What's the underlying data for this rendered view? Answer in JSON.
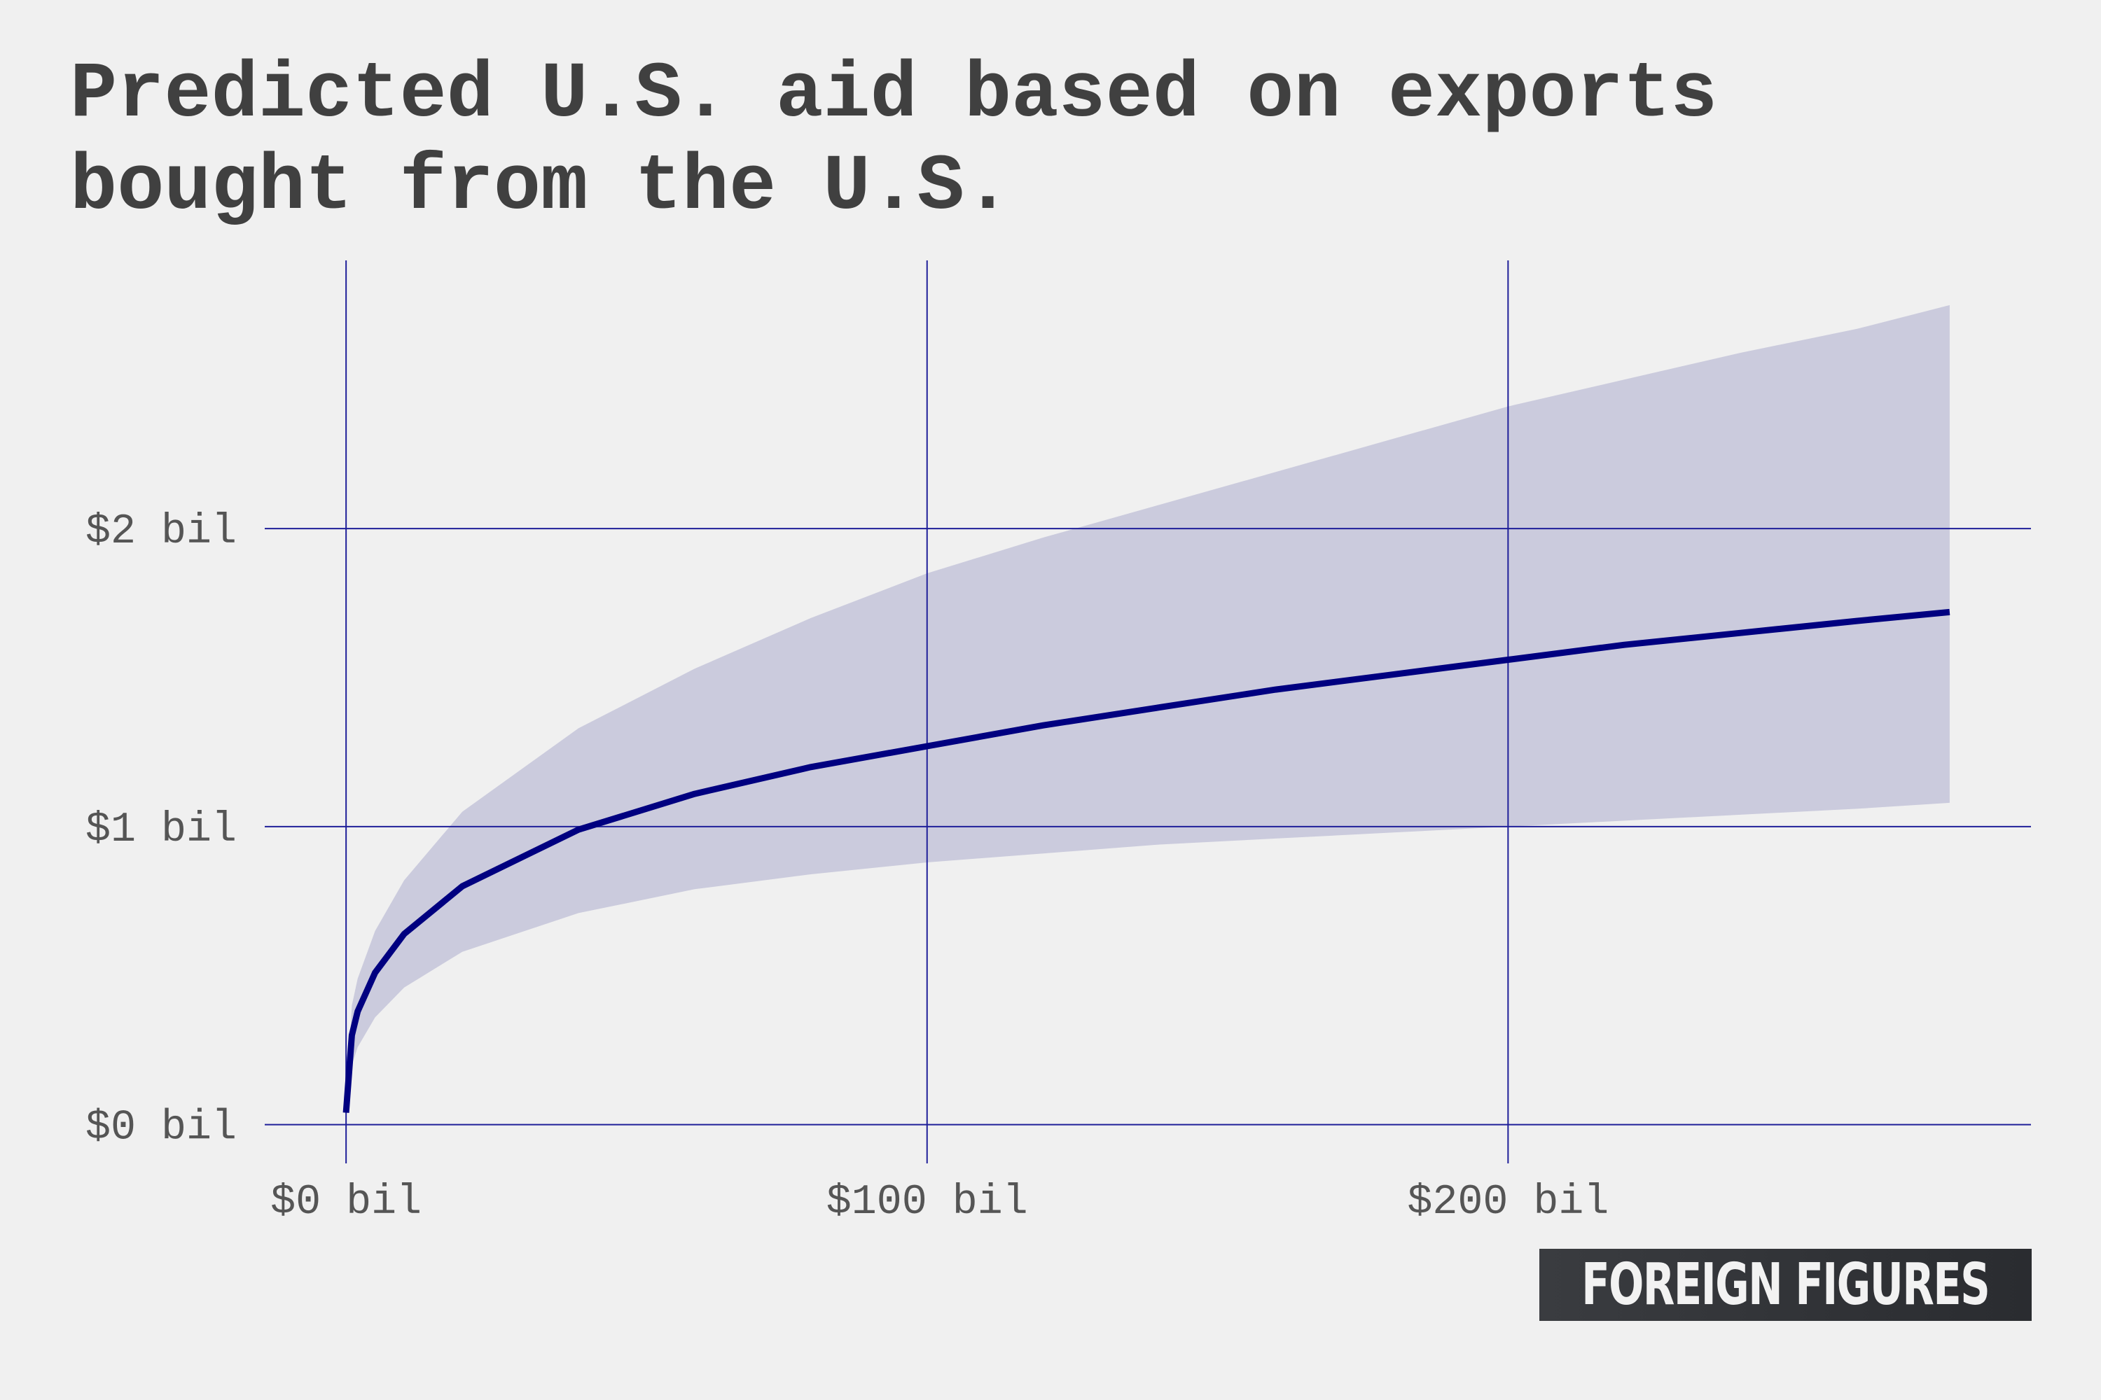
{
  "title_lines": [
    "Predicted U.S. aid based on exports",
    "bought from the U.S."
  ],
  "brand": "FOREIGN FIGURES",
  "colors": {
    "background": "#f0f0f0",
    "line": "#000080",
    "band": "#cbcbdd",
    "grid": "#1f1f99",
    "title": "#404040",
    "ticks": "#555555",
    "brand_bg": "#303236"
  },
  "chart_data": {
    "type": "line",
    "title": "Predicted U.S. aid based on exports bought from the U.S.",
    "xlabel": "",
    "ylabel": "",
    "x_unit": "$ bil (exports bought from the U.S.)",
    "y_unit": "$ bil (predicted U.S. aid)",
    "xlim": [
      -14,
      290
    ],
    "ylim": [
      -0.13,
      2.9
    ],
    "x_ticks": [
      0,
      100,
      200
    ],
    "x_tick_labels": [
      "$0 bil",
      "$100 bil",
      "$200 bil"
    ],
    "y_ticks": [
      0,
      1,
      2
    ],
    "y_tick_labels": [
      "$0 bil",
      "$1 bil",
      "$2 bil"
    ],
    "grid": true,
    "legend": "none",
    "series": [
      {
        "x": [
          0,
          1,
          2,
          5,
          10,
          20,
          40,
          60,
          80,
          100,
          120,
          140,
          160,
          180,
          200,
          220,
          240,
          260,
          276
        ],
        "y": [
          0.04,
          0.3,
          0.38,
          0.51,
          0.64,
          0.8,
          0.99,
          1.11,
          1.2,
          1.27,
          1.34,
          1.4,
          1.46,
          1.51,
          1.56,
          1.61,
          1.65,
          1.69,
          1.72
        ],
        "lower": [
          0.04,
          0.2,
          0.26,
          0.36,
          0.46,
          0.58,
          0.71,
          0.79,
          0.84,
          0.88,
          0.91,
          0.94,
          0.96,
          0.98,
          1.0,
          1.02,
          1.04,
          1.06,
          1.08
        ],
        "upper": [
          0.04,
          0.4,
          0.49,
          0.65,
          0.82,
          1.05,
          1.33,
          1.53,
          1.7,
          1.85,
          1.97,
          2.08,
          2.19,
          2.3,
          2.41,
          2.5,
          2.59,
          2.67,
          2.75
        ]
      }
    ]
  }
}
